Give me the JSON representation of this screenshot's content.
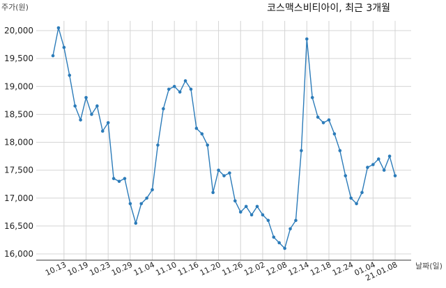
{
  "chart_data": {
    "type": "line",
    "title": "코스맥스비티아이, 최근 3개월",
    "ylabel": "주가(원)",
    "xlabel": "날짜(일)",
    "ylim": [
      15900,
      20250
    ],
    "yticks": [
      16000,
      16500,
      17000,
      17500,
      18000,
      18500,
      19000,
      19500,
      20000
    ],
    "ytick_labels": [
      "16,000",
      "16,500",
      "17,000",
      "17,500",
      "18,000",
      "18,500",
      "19,000",
      "19,500",
      "20,000"
    ],
    "xticks": [
      {
        "i": 2,
        "label": "10.13"
      },
      {
        "i": 6,
        "label": "10.19"
      },
      {
        "i": 10,
        "label": "10.23"
      },
      {
        "i": 14,
        "label": "10.29"
      },
      {
        "i": 18,
        "label": "11.04"
      },
      {
        "i": 22,
        "label": "11.10"
      },
      {
        "i": 26,
        "label": "11.16"
      },
      {
        "i": 30,
        "label": "11.20"
      },
      {
        "i": 34,
        "label": "11.26"
      },
      {
        "i": 38,
        "label": "12.02"
      },
      {
        "i": 42,
        "label": "12.08"
      },
      {
        "i": 46,
        "label": "12.14"
      },
      {
        "i": 50,
        "label": "12.18"
      },
      {
        "i": 54,
        "label": "12.24"
      },
      {
        "i": 58,
        "label": "01.04"
      },
      {
        "i": 62,
        "label": "21.01.08"
      }
    ],
    "grid": true,
    "color": "#2b7bb9",
    "series": [
      {
        "values": [
          19550,
          20050,
          19700,
          19200,
          18650,
          18400,
          18800,
          18500,
          18650,
          18200,
          18350,
          17350,
          17300,
          17350,
          16900,
          16550,
          16900,
          17000,
          17150,
          17950,
          18600,
          18950,
          19000,
          18900,
          19100,
          18950,
          18250,
          18150,
          17950,
          17100,
          17500,
          17400,
          17450,
          16950,
          16750,
          16850,
          16700,
          16850,
          16700,
          16600,
          16300,
          16200,
          16100,
          16450,
          16600,
          17850,
          19850,
          18800,
          18450,
          18350,
          18400,
          18150,
          17850,
          17400,
          17000,
          16900,
          17100,
          17550,
          17600,
          17700,
          17500,
          17750,
          17400
        ]
      }
    ]
  }
}
